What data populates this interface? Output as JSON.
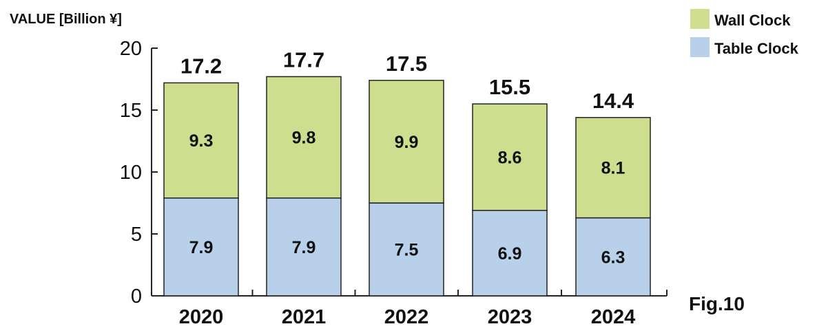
{
  "chart_data": {
    "type": "bar",
    "stacked": true,
    "ylabel": "VALUE [Billion ¥]",
    "categories": [
      "2020",
      "2021",
      "2022",
      "2023",
      "2024"
    ],
    "series": [
      {
        "name": "Table Clock",
        "values": [
          7.9,
          7.9,
          7.5,
          6.9,
          6.3
        ],
        "color": "#b8d0ea"
      },
      {
        "name": "Wall Clock",
        "values": [
          9.3,
          9.8,
          9.9,
          8.6,
          8.1
        ],
        "color": "#cddf8f"
      }
    ],
    "totals": [
      17.2,
      17.7,
      17.5,
      15.5,
      14.4
    ],
    "ylim": [
      0,
      20
    ],
    "yticks": [
      0,
      5,
      10,
      15,
      20
    ],
    "legend": {
      "placement": "top-right",
      "entries": [
        "Wall Clock",
        "Table Clock"
      ]
    },
    "figure_label": "Fig.10",
    "grid": false
  }
}
